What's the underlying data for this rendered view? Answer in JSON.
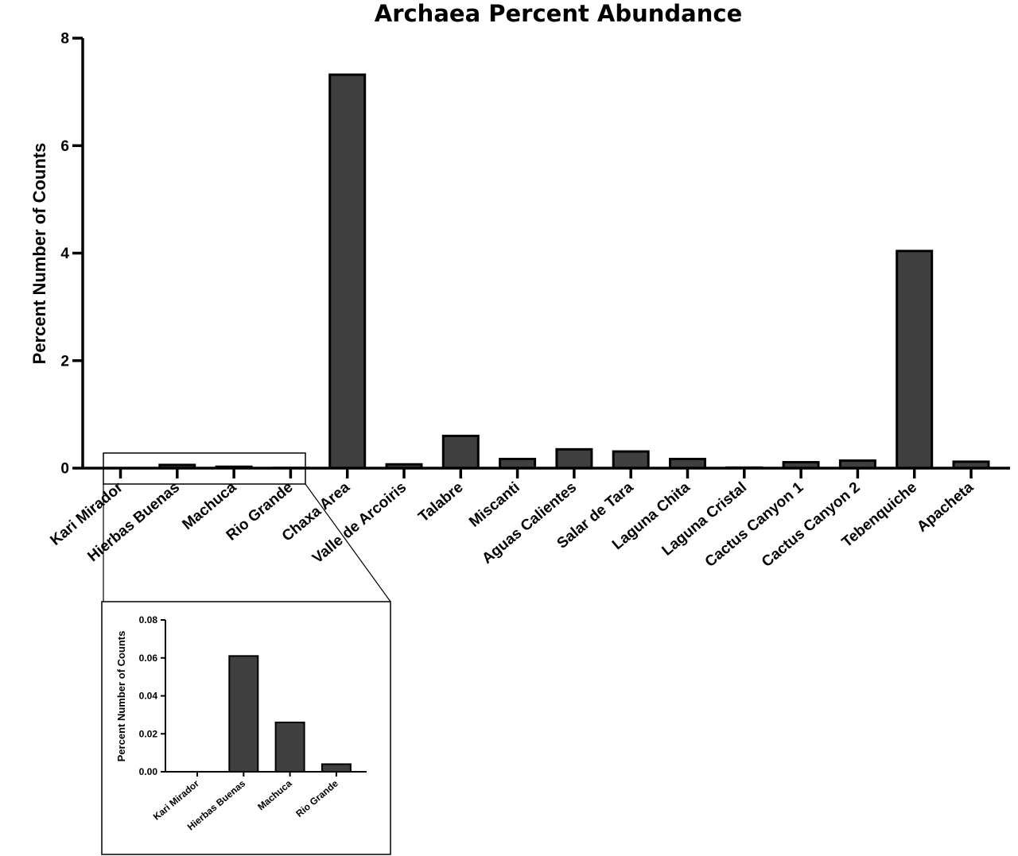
{
  "chart_data": [
    {
      "type": "bar",
      "title": "Archaea Percent Abundance",
      "xlabel": "",
      "ylabel": "Percent Number of Counts",
      "ylim": [
        0,
        8
      ],
      "yticks": [
        0,
        2,
        4,
        6,
        8
      ],
      "grid": false,
      "categories": [
        "Kari Mirador",
        "Hierbas Buenas",
        "Machuca",
        "Rio Grande",
        "Chaxa Area",
        "Valle de Arcoiris",
        "Talabre",
        "Miscanti",
        "Aguas Calientes",
        "Salar de Tara",
        "Laguna Chita",
        "Laguna Cristal",
        "Cactus Canyon 1",
        "Cactus Canyon 2",
        "Tebenquiche",
        "Apacheta"
      ],
      "values": [
        0.0,
        0.06,
        0.026,
        0.004,
        7.32,
        0.07,
        0.6,
        0.17,
        0.35,
        0.31,
        0.17,
        0.01,
        0.11,
        0.14,
        4.04,
        0.12
      ],
      "bar_color": "#404040"
    },
    {
      "type": "bar",
      "title": "",
      "xlabel": "",
      "ylabel": "Percent Number of Counts",
      "ylim": [
        0,
        0.08
      ],
      "yticks": [
        "0.00",
        "0.02",
        "0.04",
        "0.06",
        "0.08"
      ],
      "grid": false,
      "categories": [
        "Kari Mirador",
        "Hierbas Buenas",
        "Machuca",
        "Rio Grande"
      ],
      "values": [
        0.0,
        0.061,
        0.026,
        0.004
      ],
      "bar_color": "#404040"
    }
  ]
}
